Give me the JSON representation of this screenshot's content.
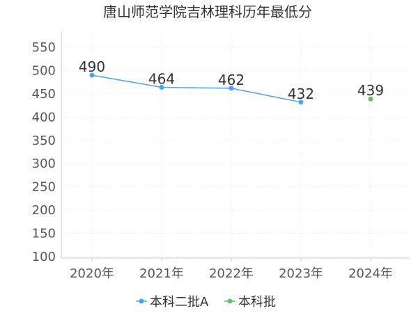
{
  "chart_data": {
    "type": "line",
    "title": "唐山师范学院吉林理科历年最低分",
    "categories": [
      "2020年",
      "2021年",
      "2022年",
      "2023年",
      "2024年"
    ],
    "ylim": [
      100,
      550
    ],
    "yticks": [
      100,
      150,
      200,
      250,
      300,
      350,
      400,
      450,
      500,
      550
    ],
    "grid": true,
    "legend_position": "bottom",
    "series": [
      {
        "name": "本科二批A",
        "color": "#4aa3f5",
        "values": [
          490,
          464,
          462,
          432,
          null
        ]
      },
      {
        "name": "本科批",
        "color": "#5cc26a",
        "values": [
          null,
          null,
          null,
          null,
          439
        ]
      }
    ]
  }
}
